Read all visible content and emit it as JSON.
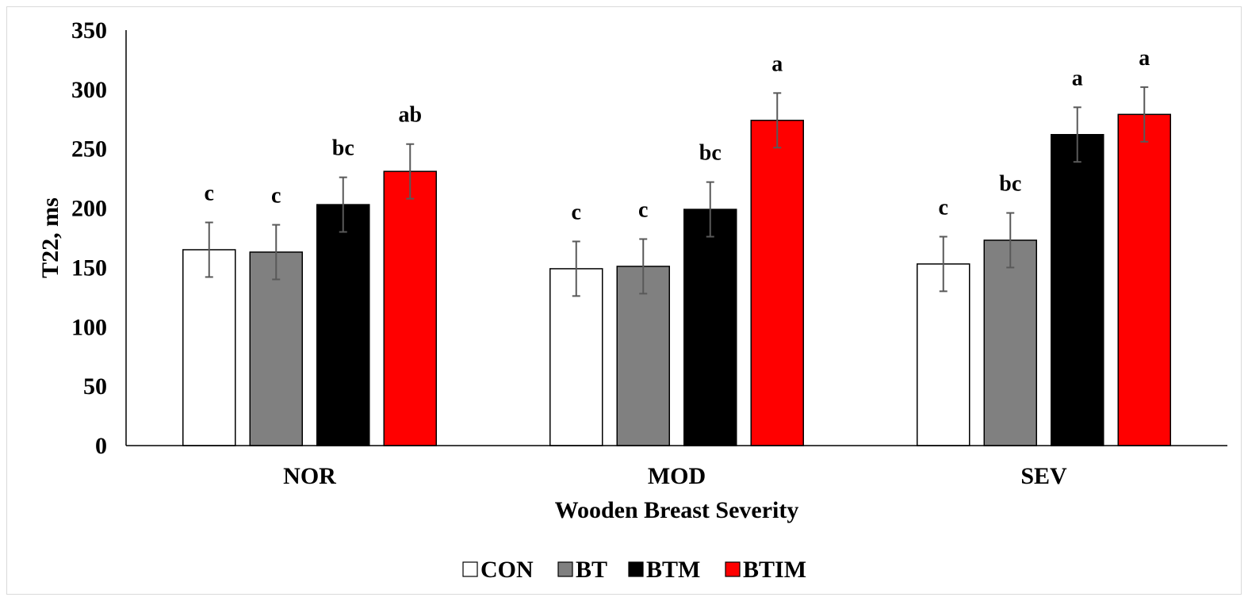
{
  "chart_data": {
    "type": "bar",
    "title": "",
    "xlabel": "Wooden Breast Severity",
    "ylabel": "T22, ms",
    "ylim": [
      0,
      350
    ],
    "yticks": [
      0,
      50,
      100,
      150,
      200,
      250,
      300,
      350
    ],
    "categories": [
      "NOR",
      "MOD",
      "SEV"
    ],
    "series": [
      {
        "name": "CON",
        "color": "#ffffff",
        "values": [
          165,
          149,
          153
        ],
        "errors": [
          23,
          23,
          23
        ],
        "letters": [
          "c",
          "c",
          "c"
        ]
      },
      {
        "name": "BT",
        "color": "#808080",
        "values": [
          163,
          151,
          173
        ],
        "errors": [
          23,
          23,
          23
        ],
        "letters": [
          "c",
          "c",
          "bc"
        ]
      },
      {
        "name": "BTM",
        "color": "#000000",
        "values": [
          203,
          199,
          262
        ],
        "errors": [
          23,
          23,
          23
        ],
        "letters": [
          "bc",
          "bc",
          "a"
        ]
      },
      {
        "name": "BTIM",
        "color": "#ff0000",
        "values": [
          231,
          274,
          279
        ],
        "errors": [
          23,
          23,
          23
        ],
        "letters": [
          "ab",
          "a",
          "a"
        ]
      }
    ],
    "grid": false,
    "legend_position": "bottom"
  }
}
